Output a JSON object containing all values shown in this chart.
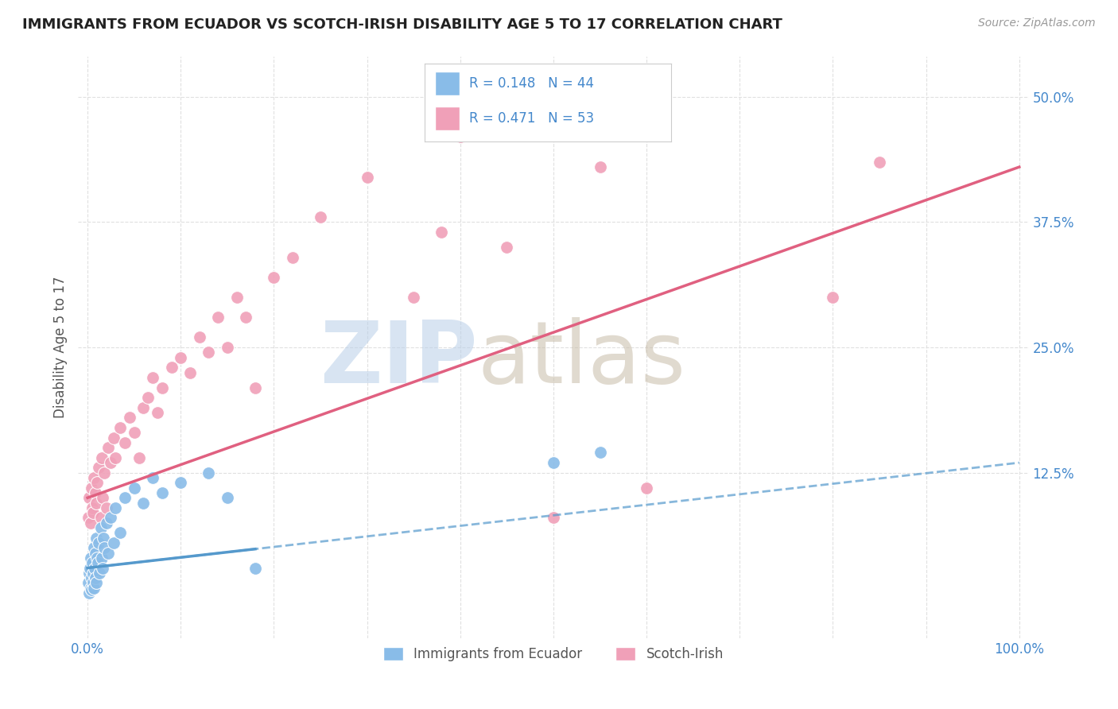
{
  "title": "IMMIGRANTS FROM ECUADOR VS SCOTCH-IRISH DISABILITY AGE 5 TO 17 CORRELATION CHART",
  "source": "Source: ZipAtlas.com",
  "ylabel": "Disability Age 5 to 17",
  "r_ecuador": 0.148,
  "n_ecuador": 44,
  "r_scotch": 0.471,
  "n_scotch": 53,
  "x_ticks": [
    0.0,
    10.0,
    20.0,
    30.0,
    40.0,
    50.0,
    60.0,
    70.0,
    80.0,
    90.0,
    100.0
  ],
  "y_tick_positions": [
    0.0,
    12.5,
    25.0,
    37.5,
    50.0
  ],
  "y_tick_labels": [
    "",
    "12.5%",
    "25.0%",
    "37.5%",
    "50.0%"
  ],
  "xlim": [
    -1,
    101
  ],
  "ylim": [
    -4,
    54
  ],
  "background_color": "#ffffff",
  "grid_color": "#e0e0e0",
  "ecuador_color": "#89bce8",
  "scotch_color": "#f0a0b8",
  "ecuador_line_color": "#5599cc",
  "scotch_line_color": "#e06080",
  "tick_color": "#4488cc",
  "title_color": "#222222",
  "legend_text_color": "#4488cc",
  "ecuador_x": [
    0.1,
    0.15,
    0.2,
    0.25,
    0.3,
    0.35,
    0.4,
    0.45,
    0.5,
    0.55,
    0.6,
    0.65,
    0.7,
    0.75,
    0.8,
    0.85,
    0.9,
    0.95,
    1.0,
    1.1,
    1.2,
    1.3,
    1.4,
    1.5,
    1.6,
    1.7,
    1.8,
    2.0,
    2.2,
    2.5,
    2.8,
    3.0,
    3.5,
    4.0,
    5.0,
    6.0,
    7.0,
    8.0,
    10.0,
    13.0,
    15.0,
    18.0,
    50.0,
    55.0
  ],
  "ecuador_y": [
    1.5,
    2.5,
    0.5,
    3.0,
    1.0,
    4.0,
    2.0,
    0.8,
    3.5,
    1.5,
    2.5,
    5.0,
    1.0,
    3.0,
    4.5,
    2.0,
    6.0,
    1.5,
    4.0,
    3.5,
    5.5,
    2.5,
    7.0,
    4.0,
    3.0,
    6.0,
    5.0,
    7.5,
    4.5,
    8.0,
    5.5,
    9.0,
    6.5,
    10.0,
    11.0,
    9.5,
    12.0,
    10.5,
    11.5,
    12.5,
    10.0,
    3.0,
    13.5,
    14.5
  ],
  "scotch_x": [
    0.1,
    0.2,
    0.3,
    0.4,
    0.5,
    0.6,
    0.7,
    0.8,
    0.9,
    1.0,
    1.2,
    1.4,
    1.5,
    1.6,
    1.8,
    2.0,
    2.2,
    2.5,
    2.8,
    3.0,
    3.5,
    4.0,
    4.5,
    5.0,
    5.5,
    6.0,
    6.5,
    7.0,
    7.5,
    8.0,
    9.0,
    10.0,
    11.0,
    12.0,
    13.0,
    14.0,
    15.0,
    16.0,
    17.0,
    18.0,
    20.0,
    22.0,
    25.0,
    30.0,
    35.0,
    38.0,
    40.0,
    45.0,
    50.0,
    55.0,
    60.0,
    80.0,
    85.0
  ],
  "scotch_y": [
    8.0,
    10.0,
    7.5,
    11.0,
    9.0,
    8.5,
    12.0,
    10.5,
    9.5,
    11.5,
    13.0,
    8.0,
    14.0,
    10.0,
    12.5,
    9.0,
    15.0,
    13.5,
    16.0,
    14.0,
    17.0,
    15.5,
    18.0,
    16.5,
    14.0,
    19.0,
    20.0,
    22.0,
    18.5,
    21.0,
    23.0,
    24.0,
    22.5,
    26.0,
    24.5,
    28.0,
    25.0,
    30.0,
    28.0,
    21.0,
    32.0,
    34.0,
    38.0,
    42.0,
    30.0,
    36.5,
    46.0,
    35.0,
    8.0,
    43.0,
    11.0,
    30.0,
    43.5
  ],
  "scotch_trendline_x0": 0,
  "scotch_trendline_y0": 10.0,
  "scotch_trendline_x1": 100,
  "scotch_trendline_y1": 43.0,
  "ecuador_trendline_x0": 0,
  "ecuador_trendline_y0": 3.0,
  "ecuador_trendline_x1": 100,
  "ecuador_trendline_y1": 13.5,
  "ecuador_solid_x0": 0,
  "ecuador_solid_x1": 18
}
